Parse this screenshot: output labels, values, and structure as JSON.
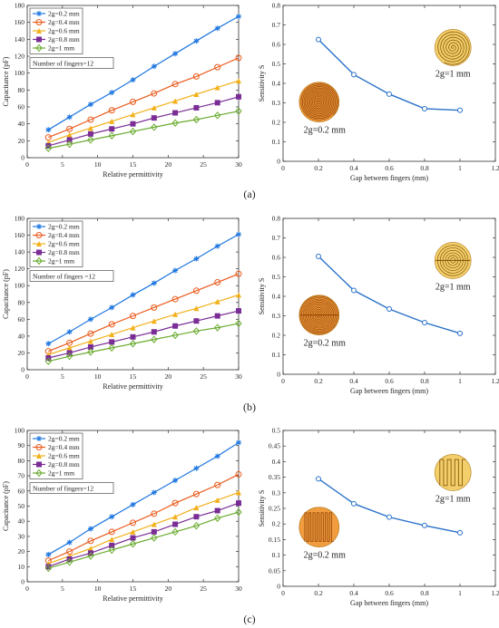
{
  "panel_captions": [
    "(a)",
    "(b)",
    "(c)"
  ],
  "colors": {
    "series": [
      "#1f77e0",
      "#ea5a1b",
      "#f2b01a",
      "#7b2d96",
      "#6aab2f"
    ],
    "sens_line": "#2a72c8",
    "electrode_fill_a": "#f2cf6b",
    "electrode_fill_b": "#f09c3f"
  },
  "chart_data": [
    {
      "type": "line",
      "panel": "a-left",
      "xlabel": "Relative permittivity",
      "ylabel": "Capacitance (pF)",
      "xlim": [
        0,
        30
      ],
      "ylim": [
        0,
        180
      ],
      "xticks": [
        0,
        5,
        10,
        15,
        20,
        25,
        30
      ],
      "yticks": [
        0,
        20,
        40,
        60,
        80,
        100,
        120,
        140,
        160,
        180
      ],
      "x": [
        3,
        6,
        9,
        12,
        15,
        18,
        21,
        24,
        27,
        30
      ],
      "legend_position": "top-left",
      "annotation": "Number of fingers=12",
      "series": [
        {
          "name": "2g=0.2 mm",
          "marker": "star",
          "values": [
            33,
            48,
            63,
            77,
            92,
            108,
            123,
            138,
            153,
            167
          ]
        },
        {
          "name": "2g=0.4 mm",
          "marker": "circle",
          "values": [
            24,
            34,
            45,
            56,
            66,
            76,
            87,
            96,
            107,
            118
          ]
        },
        {
          "name": "2g=0.6 mm",
          "marker": "triangle",
          "values": [
            18,
            27,
            35,
            43,
            51,
            59,
            67,
            75,
            83,
            91
          ]
        },
        {
          "name": "2g=0.8 mm",
          "marker": "square",
          "values": [
            14,
            21,
            28,
            34,
            40,
            47,
            53,
            59,
            65,
            72
          ]
        },
        {
          "name": "2g=1 mm",
          "marker": "diamond",
          "values": [
            11,
            16,
            21,
            26,
            31,
            36,
            41,
            45,
            50,
            55
          ]
        }
      ]
    },
    {
      "type": "line",
      "panel": "a-right",
      "xlabel": "Gap between fingers (mm)",
      "ylabel": "Sensitivity S",
      "xlim": [
        0,
        1.2
      ],
      "ylim": [
        0,
        0.8
      ],
      "xticks": [
        0,
        0.2,
        0.4,
        0.6,
        0.8,
        1,
        1.2
      ],
      "yticks": [
        0,
        0.1,
        0.2,
        0.3,
        0.4,
        0.5,
        0.6,
        0.7,
        0.8
      ],
      "x": [
        0.2,
        0.4,
        0.6,
        0.8,
        1.0
      ],
      "series": [
        {
          "values": [
            0.625,
            0.445,
            0.345,
            0.27,
            0.262
          ]
        }
      ],
      "annotations": [
        "2g=1 mm",
        "2g=0.2 mm"
      ],
      "electrode_style": "spiral"
    },
    {
      "type": "line",
      "panel": "b-left",
      "xlabel": "Relative permittivity",
      "ylabel": "Capacitance (pF)",
      "xlim": [
        0,
        30
      ],
      "ylim": [
        0,
        180
      ],
      "xticks": [
        0,
        5,
        10,
        15,
        20,
        25,
        30
      ],
      "yticks": [
        0,
        20,
        40,
        60,
        80,
        100,
        120,
        140,
        160,
        180
      ],
      "x": [
        3,
        6,
        9,
        12,
        15,
        18,
        21,
        24,
        27,
        30
      ],
      "legend_position": "top-left",
      "annotation": "Number of fingers =12",
      "series": [
        {
          "name": "2g=0.2 mm",
          "marker": "star",
          "values": [
            31,
            45,
            60,
            74,
            89,
            103,
            118,
            132,
            147,
            161
          ]
        },
        {
          "name": "2g=0.4 mm",
          "marker": "circle",
          "values": [
            22,
            32,
            43,
            54,
            64,
            74,
            84,
            94,
            104,
            114
          ]
        },
        {
          "name": "2g=0.6 mm",
          "marker": "triangle",
          "values": [
            18,
            26,
            34,
            42,
            50,
            58,
            66,
            73,
            81,
            89
          ]
        },
        {
          "name": "2g=0.8 mm",
          "marker": "square",
          "values": [
            14,
            20,
            27,
            33,
            39,
            45,
            52,
            58,
            64,
            70
          ]
        },
        {
          "name": "2g=1 mm",
          "marker": "diamond",
          "values": [
            10,
            16,
            21,
            26,
            31,
            36,
            41,
            46,
            50,
            55
          ]
        }
      ]
    },
    {
      "type": "line",
      "panel": "b-right",
      "xlabel": "Gap between fingers (mm)",
      "ylabel": "Sensitivity S",
      "xlim": [
        0,
        1.2
      ],
      "ylim": [
        0,
        0.8
      ],
      "xticks": [
        0,
        0.2,
        0.4,
        0.6,
        0.8,
        1,
        1.2
      ],
      "yticks": [
        0,
        0.1,
        0.2,
        0.3,
        0.4,
        0.5,
        0.6,
        0.7,
        0.8
      ],
      "x": [
        0.2,
        0.4,
        0.6,
        0.8,
        1.0
      ],
      "series": [
        {
          "values": [
            0.605,
            0.43,
            0.335,
            0.265,
            0.21
          ]
        }
      ],
      "annotations": [
        "2g=1 mm",
        "2g=0.2 mm"
      ],
      "electrode_style": "concentric"
    },
    {
      "type": "line",
      "panel": "c-left",
      "xlabel": "Relative permittivity",
      "ylabel": "Capacitance (pF)",
      "xlim": [
        0,
        30
      ],
      "ylim": [
        0,
        100
      ],
      "xticks": [
        0,
        5,
        10,
        15,
        20,
        25,
        30
      ],
      "yticks": [
        0,
        10,
        20,
        30,
        40,
        50,
        60,
        70,
        80,
        90,
        100
      ],
      "x": [
        3,
        6,
        9,
        12,
        15,
        18,
        21,
        24,
        27,
        30
      ],
      "legend_position": "top-left",
      "annotation": "Number of fingers=12",
      "series": [
        {
          "name": "2g=0.2 mm",
          "marker": "star",
          "values": [
            18,
            26,
            35,
            43,
            51,
            59,
            67,
            75,
            83,
            92
          ]
        },
        {
          "name": "2g=0.4 mm",
          "marker": "circle",
          "values": [
            14,
            20,
            27,
            33,
            39,
            45,
            52,
            58,
            64,
            71
          ]
        },
        {
          "name": "2g=0.6 mm",
          "marker": "triangle",
          "values": [
            12,
            17,
            22,
            28,
            33,
            38,
            43,
            49,
            54,
            59
          ]
        },
        {
          "name": "2g=0.8 mm",
          "marker": "square",
          "values": [
            10,
            15,
            19,
            24,
            29,
            33,
            38,
            43,
            47,
            52
          ]
        },
        {
          "name": "2g=1 mm",
          "marker": "diamond",
          "values": [
            9,
            13,
            17,
            21,
            25,
            29,
            33,
            37,
            42,
            46
          ]
        }
      ]
    },
    {
      "type": "line",
      "panel": "c-right",
      "xlabel": "Gap between fingers (mm)",
      "ylabel": "Sensitivity S",
      "xlim": [
        0,
        1.2
      ],
      "ylim": [
        0,
        0.5
      ],
      "xticks": [
        0,
        0.2,
        0.4,
        0.6,
        0.8,
        1,
        1.2
      ],
      "yticks": [
        0,
        0.05,
        0.1,
        0.15,
        0.2,
        0.25,
        0.3,
        0.35,
        0.4,
        0.45,
        0.5
      ],
      "x": [
        0.2,
        0.4,
        0.6,
        0.8,
        1.0
      ],
      "series": [
        {
          "values": [
            0.345,
            0.265,
            0.222,
            0.195,
            0.172
          ]
        }
      ],
      "annotations": [
        "2g=1 mm",
        "2g=0.2 mm"
      ],
      "electrode_style": "comb"
    }
  ]
}
